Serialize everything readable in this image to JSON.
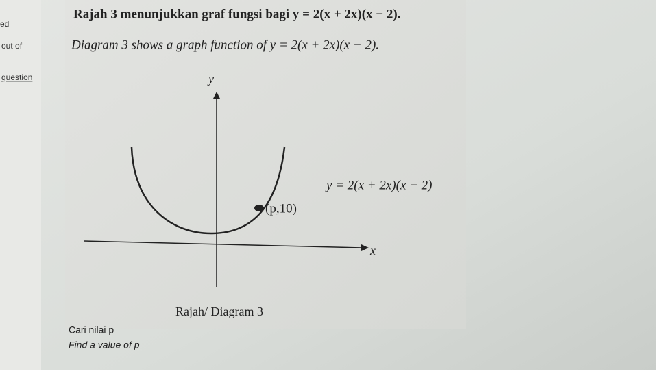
{
  "sidebar": {
    "items": [
      "ed",
      "out of",
      "question"
    ]
  },
  "question": {
    "line_ms": "Rajah 3 menunjukkan graf fungsi bagi y = 2(x + 2x)(x − 2).",
    "line_en": "Diagram 3 shows a graph function of y = 2(x + 2x)(x − 2).",
    "diagram": {
      "y_axis_label": "y",
      "x_axis_label": "x",
      "curve_label": "y = 2(x + 2x)(x − 2)",
      "point_label": "(p,10)",
      "caption": "Rajah/ Diagram 3"
    },
    "prompt_ms": "Cari nilai p",
    "prompt_en": "Find a value of p"
  }
}
